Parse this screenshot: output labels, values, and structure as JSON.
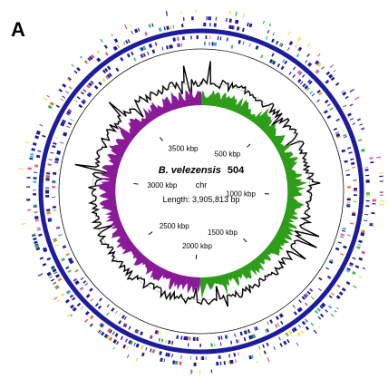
{
  "figure": {
    "panel_letter": "A"
  },
  "genome": {
    "organism": "B. velezensis",
    "strain": "504",
    "contig": "chr",
    "length_text": "Length: 3,905,813 bp",
    "length_bp": 3905813
  },
  "scale_ticks": [
    {
      "label": "500 kbp",
      "position_bp": 500000
    },
    {
      "label": "1000 kbp",
      "position_bp": 1000000
    },
    {
      "label": "1500 kbp",
      "position_bp": 1500000
    },
    {
      "label": "2000 kbp",
      "position_bp": 2000000
    },
    {
      "label": "2500 kbp",
      "position_bp": 2500000
    },
    {
      "label": "3000 kbp",
      "position_bp": 3000000
    },
    {
      "label": "3500 kbp",
      "position_bp": 3500000
    }
  ],
  "colors": {
    "gc_skew_positive": "#2e9e1a",
    "gc_skew_negative": "#8b1a99",
    "gc_content": "#000000",
    "cds_backbone": "#1c1c9c",
    "feature_palette": [
      "#1c1c9c",
      "#2ab34a",
      "#e04f9e",
      "#f2e14b",
      "#3fb8d6",
      "#e07b39",
      "#7a3fb8",
      "#56c05b"
    ]
  },
  "gc_skew": {
    "positive_region_bp": [
      0,
      1960000
    ],
    "negative_region_bp": [
      1960000,
      3905813
    ]
  }
}
